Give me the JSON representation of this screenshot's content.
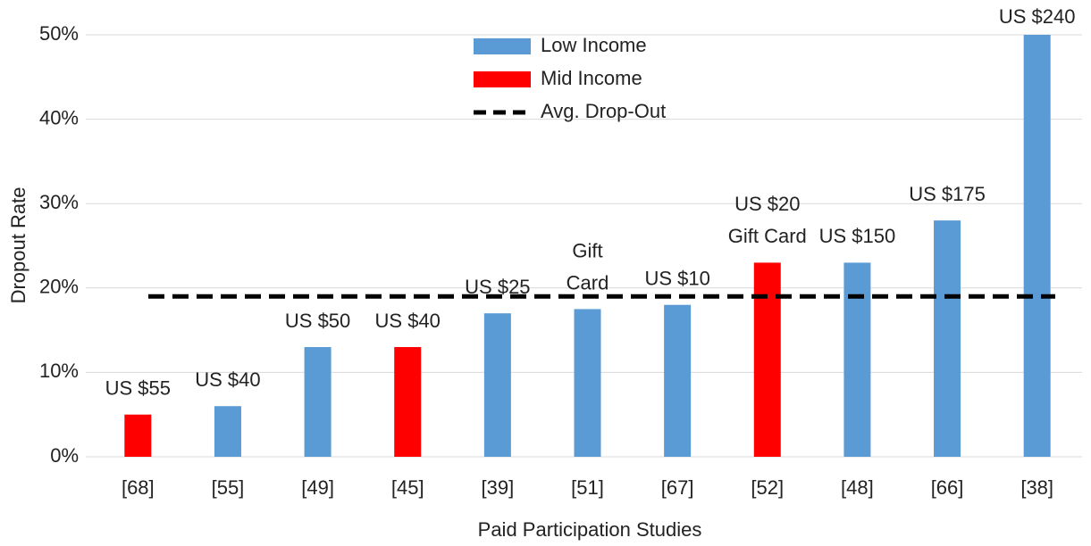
{
  "chart_data": {
    "type": "bar",
    "x_label": "Paid Participation Studies",
    "y_label": "Dropout Rate",
    "categories": [
      "[68]",
      "[55]",
      "[49]",
      "[45]",
      "[39]",
      "[51]",
      "[67]",
      "[52]",
      "[48]",
      "[66]",
      "[38]"
    ],
    "series": [
      {
        "name": "Low Income",
        "color": "#5b9bd5",
        "values": [
          null,
          6,
          13,
          null,
          17,
          17.5,
          18,
          null,
          23,
          28,
          50
        ]
      },
      {
        "name": "Mid Income",
        "color": "#ff0000",
        "values": [
          5,
          null,
          null,
          13,
          null,
          null,
          null,
          23,
          null,
          null,
          null
        ]
      }
    ],
    "reference_line": {
      "name": "Avg. Drop-Out",
      "value": 19,
      "color": "#000000",
      "style": "dashed"
    },
    "annotations": [
      [
        "US $55"
      ],
      [
        "US $40"
      ],
      [
        "US $50"
      ],
      [
        "US $40"
      ],
      [
        "US $25"
      ],
      [
        "Gift",
        "Card"
      ],
      [
        "US $10"
      ],
      [
        "US $20",
        "Gift Card"
      ],
      [
        "US $150"
      ],
      [
        "US $175"
      ],
      [
        "US $240"
      ]
    ],
    "ylim": [
      0,
      50
    ],
    "yticks": [
      {
        "value": 0,
        "label": "0%"
      },
      {
        "value": 10,
        "label": "10%"
      },
      {
        "value": 20,
        "label": "20%"
      },
      {
        "value": 30,
        "label": "30%"
      },
      {
        "value": 40,
        "label": "40%"
      },
      {
        "value": 50,
        "label": "50%"
      }
    ],
    "grid": true,
    "legend": "top"
  }
}
